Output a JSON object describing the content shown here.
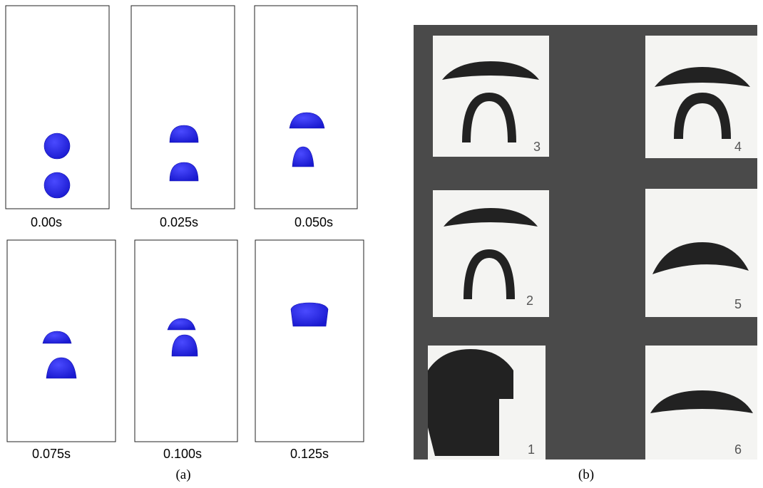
{
  "panel_a": {
    "frames": [
      {
        "label": "0.00s"
      },
      {
        "label": "0.025s"
      },
      {
        "label": "0.050s"
      },
      {
        "label": "0.075s"
      },
      {
        "label": "0.100s"
      },
      {
        "label": "0.125s"
      }
    ],
    "caption": "(a)"
  },
  "panel_b": {
    "photos": [
      {
        "label": "3"
      },
      {
        "label": "4"
      },
      {
        "label": "2"
      },
      {
        "label": "5"
      },
      {
        "label": "1"
      },
      {
        "label": "6"
      }
    ],
    "caption": "(b)"
  }
}
